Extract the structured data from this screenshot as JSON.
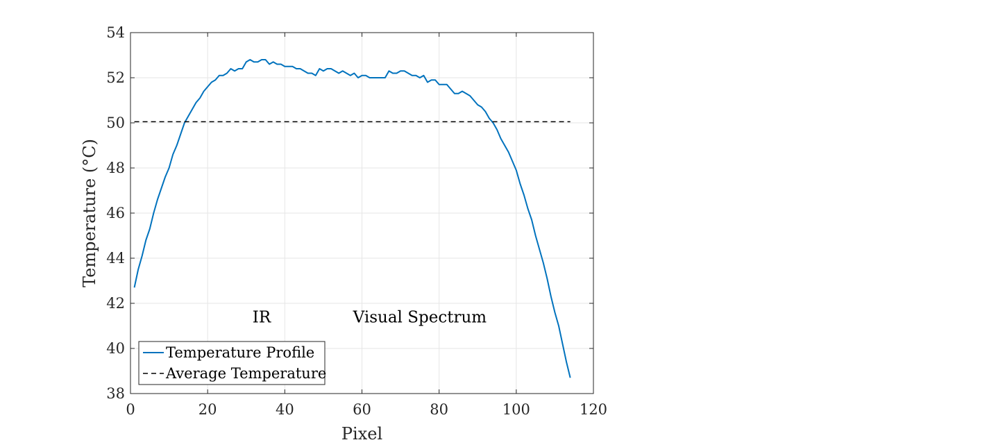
{
  "chart_data": {
    "type": "line",
    "xlabel": "Pixel",
    "ylabel": "Temperature (°C)",
    "xlim": [
      0,
      120
    ],
    "ylim": [
      38,
      54
    ],
    "xticks": [
      "0",
      "20",
      "40",
      "60",
      "80",
      "100",
      "120"
    ],
    "yticks": [
      "38",
      "40",
      "42",
      "44",
      "46",
      "48",
      "50",
      "52",
      "54"
    ],
    "grid": true,
    "legend_position": "bottom-left",
    "annotations": [
      {
        "text": "IR",
        "x": 34,
        "y": 41.4
      },
      {
        "text": "Visual Spectrum",
        "x": 75,
        "y": 41.4
      }
    ],
    "series": [
      {
        "name": "Temperature Profile",
        "color": "#0072BD",
        "style": "solid",
        "x": [
          1,
          2,
          3,
          4,
          5,
          6,
          7,
          8,
          9,
          10,
          11,
          12,
          13,
          14,
          15,
          16,
          17,
          18,
          19,
          20,
          21,
          22,
          23,
          24,
          25,
          26,
          27,
          28,
          29,
          30,
          31,
          32,
          33,
          34,
          35,
          36,
          37,
          38,
          39,
          40,
          41,
          42,
          43,
          44,
          45,
          46,
          47,
          48,
          49,
          50,
          51,
          52,
          53,
          54,
          55,
          56,
          57,
          58,
          59,
          60,
          61,
          62,
          63,
          64,
          65,
          66,
          67,
          68,
          69,
          70,
          71,
          72,
          73,
          74,
          75,
          76,
          77,
          78,
          79,
          80,
          81,
          82,
          83,
          84,
          85,
          86,
          87,
          88,
          89,
          90,
          91,
          92,
          93,
          94,
          95,
          96,
          97,
          98,
          99,
          100,
          101,
          102,
          103,
          104,
          105,
          106,
          107,
          108,
          109,
          110,
          111,
          112,
          113,
          114
        ],
        "y": [
          42.7,
          43.5,
          44.1,
          44.8,
          45.3,
          46.0,
          46.6,
          47.1,
          47.6,
          48.0,
          48.6,
          49.0,
          49.5,
          50.0,
          50.3,
          50.6,
          50.9,
          51.1,
          51.4,
          51.6,
          51.8,
          51.9,
          52.1,
          52.1,
          52.2,
          52.4,
          52.3,
          52.4,
          52.4,
          52.7,
          52.8,
          52.7,
          52.7,
          52.8,
          52.8,
          52.6,
          52.7,
          52.6,
          52.6,
          52.5,
          52.5,
          52.5,
          52.4,
          52.4,
          52.3,
          52.2,
          52.2,
          52.1,
          52.4,
          52.3,
          52.4,
          52.4,
          52.3,
          52.2,
          52.3,
          52.2,
          52.1,
          52.2,
          52.0,
          52.1,
          52.1,
          52.0,
          52.0,
          52.0,
          52.0,
          52.0,
          52.3,
          52.2,
          52.2,
          52.3,
          52.3,
          52.2,
          52.1,
          52.1,
          52.0,
          52.1,
          51.8,
          51.9,
          51.9,
          51.7,
          51.7,
          51.7,
          51.5,
          51.3,
          51.3,
          51.4,
          51.3,
          51.2,
          51.0,
          50.8,
          50.7,
          50.5,
          50.2,
          50.0,
          49.7,
          49.3,
          49.0,
          48.7,
          48.3,
          47.9,
          47.3,
          46.8,
          46.2,
          45.7,
          45.0,
          44.4,
          43.8,
          43.1,
          42.3,
          41.6,
          41.0,
          40.2,
          39.4,
          38.7
        ]
      },
      {
        "name": "Average Temperature",
        "color": "#000000",
        "style": "dashed",
        "x": [
          1,
          114
        ],
        "y": [
          50.05,
          50.05
        ]
      }
    ]
  }
}
